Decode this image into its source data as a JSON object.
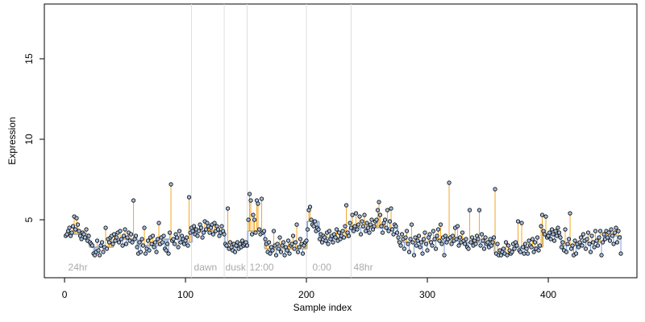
{
  "chart_data": {
    "type": "step-scatter",
    "xlabel": "Sample index",
    "ylabel": "Expression",
    "xlim": [
      -16.7,
      473.3
    ],
    "ylim": [
      1.4,
      18.4
    ],
    "xticks": [
      0,
      100,
      200,
      300,
      400
    ],
    "yticks": [
      5,
      10,
      15
    ],
    "point_color": "#a6bfe0",
    "above_color": "#f5a623",
    "below_color": "#7f9fd6",
    "fit_color": "#a6bfe0",
    "vlines": [
      105,
      132,
      151,
      200,
      237
    ],
    "annotations": [
      {
        "x": 3,
        "label": "24hr"
      },
      {
        "x": 107,
        "label": "dawn"
      },
      {
        "x": 133,
        "label": "dusk"
      },
      {
        "x": 153,
        "label": "12:00"
      },
      {
        "x": 205,
        "label": "0:00"
      },
      {
        "x": 239,
        "label": "48hr"
      }
    ],
    "fit": [
      {
        "start": 1,
        "end": 20,
        "value": 4.1
      },
      {
        "start": 21,
        "end": 40,
        "value": 3.3
      },
      {
        "start": 41,
        "end": 60,
        "value": 3.8
      },
      {
        "start": 61,
        "end": 80,
        "value": 3.4
      },
      {
        "start": 81,
        "end": 100,
        "value": 3.8
      },
      {
        "start": 101,
        "end": 105,
        "value": 3.6
      },
      {
        "start": 106,
        "end": 132,
        "value": 4.3
      },
      {
        "start": 133,
        "end": 151,
        "value": 3.3
      },
      {
        "start": 152,
        "end": 165,
        "value": 4.3
      },
      {
        "start": 166,
        "end": 200,
        "value": 3.2
      },
      {
        "start": 201,
        "end": 210,
        "value": 4.9
      },
      {
        "start": 211,
        "end": 235,
        "value": 3.9
      },
      {
        "start": 236,
        "end": 260,
        "value": 4.5
      },
      {
        "start": 261,
        "end": 275,
        "value": 4.5
      },
      {
        "start": 276,
        "end": 300,
        "value": 3.6
      },
      {
        "start": 301,
        "end": 330,
        "value": 3.7
      },
      {
        "start": 331,
        "end": 355,
        "value": 3.6
      },
      {
        "start": 356,
        "end": 370,
        "value": 2.9
      },
      {
        "start": 371,
        "end": 395,
        "value": 3.3
      },
      {
        "start": 396,
        "end": 410,
        "value": 4.1
      },
      {
        "start": 411,
        "end": 425,
        "value": 3.4
      },
      {
        "start": 426,
        "end": 445,
        "value": 3.6
      },
      {
        "start": 446,
        "end": 460,
        "value": 4.0
      }
    ],
    "x": [
      1,
      2,
      3,
      4,
      5,
      6,
      7,
      8,
      9,
      10,
      11,
      12,
      13,
      14,
      15,
      16,
      17,
      18,
      19,
      20,
      21,
      22,
      23,
      24,
      25,
      26,
      27,
      28,
      29,
      30,
      31,
      32,
      33,
      34,
      35,
      36,
      37,
      38,
      39,
      40,
      41,
      42,
      43,
      44,
      45,
      46,
      47,
      48,
      49,
      50,
      51,
      52,
      53,
      54,
      55,
      56,
      57,
      58,
      59,
      60,
      61,
      62,
      63,
      64,
      65,
      66,
      67,
      68,
      69,
      70,
      71,
      72,
      73,
      74,
      75,
      76,
      77,
      78,
      79,
      80,
      81,
      82,
      83,
      84,
      85,
      86,
      87,
      88,
      89,
      90,
      91,
      92,
      93,
      94,
      95,
      96,
      97,
      98,
      99,
      100,
      101,
      102,
      103,
      104,
      105,
      106,
      107,
      108,
      109,
      110,
      111,
      112,
      113,
      114,
      115,
      116,
      117,
      118,
      119,
      120,
      121,
      122,
      123,
      124,
      125,
      126,
      127,
      128,
      129,
      130,
      131,
      132,
      133,
      134,
      135,
      136,
      137,
      138,
      139,
      140,
      141,
      142,
      143,
      144,
      145,
      146,
      147,
      148,
      149,
      150,
      151,
      152,
      153,
      154,
      155,
      156,
      157,
      158,
      159,
      160,
      161,
      162,
      163,
      164,
      165,
      166,
      167,
      168,
      169,
      170,
      171,
      172,
      173,
      174,
      175,
      176,
      177,
      178,
      179,
      180,
      181,
      182,
      183,
      184,
      185,
      186,
      187,
      188,
      189,
      190,
      191,
      192,
      193,
      194,
      195,
      196,
      197,
      198,
      199,
      200,
      201,
      202,
      203,
      204,
      205,
      206,
      207,
      208,
      209,
      210,
      211,
      212,
      213,
      214,
      215,
      216,
      217,
      218,
      219,
      220,
      221,
      222,
      223,
      224,
      225,
      226,
      227,
      228,
      229,
      230,
      231,
      232,
      233,
      234,
      235,
      236,
      237,
      238,
      239,
      240,
      241,
      242,
      243,
      244,
      245,
      246,
      247,
      248,
      249,
      250,
      251,
      252,
      253,
      254,
      255,
      256,
      257,
      258,
      259,
      260,
      261,
      262,
      263,
      264,
      265,
      266,
      267,
      268,
      269,
      270,
      271,
      272,
      273,
      274,
      275,
      276,
      277,
      278,
      279,
      280,
      281,
      282,
      283,
      284,
      285,
      286,
      287,
      288,
      289,
      290,
      291,
      292,
      293,
      294,
      295,
      296,
      297,
      298,
      299,
      300,
      301,
      302,
      303,
      304,
      305,
      306,
      307,
      308,
      309,
      310,
      311,
      312,
      313,
      314,
      315,
      316,
      317,
      318,
      319,
      320,
      321,
      322,
      323,
      324,
      325,
      326,
      327,
      328,
      329,
      330,
      331,
      332,
      333,
      334,
      335,
      336,
      337,
      338,
      339,
      340,
      341,
      342,
      343,
      344,
      345,
      346,
      347,
      348,
      349,
      350,
      351,
      352,
      353,
      354,
      355,
      356,
      357,
      358,
      359,
      360,
      361,
      362,
      363,
      364,
      365,
      366,
      367,
      368,
      369,
      370,
      371,
      372,
      373,
      374,
      375,
      376,
      377,
      378,
      379,
      380,
      381,
      382,
      383,
      384,
      385,
      386,
      387,
      388,
      389,
      390,
      391,
      392,
      393,
      394,
      395,
      396,
      397,
      398,
      399,
      400,
      401,
      402,
      403,
      404,
      405,
      406,
      407,
      408,
      409,
      410,
      411,
      412,
      413,
      414,
      415,
      416,
      417,
      418,
      419,
      420,
      421,
      422,
      423,
      424,
      425,
      426,
      427,
      428,
      429,
      430,
      431,
      432,
      433,
      434,
      435,
      436,
      437,
      438,
      439,
      440,
      441,
      442,
      443,
      444,
      445,
      446,
      447,
      448,
      449,
      450,
      451,
      452,
      453,
      454,
      455,
      456,
      457,
      458,
      459,
      460
    ],
    "values": [
      4.0,
      4.1,
      4.3,
      4.5,
      4.0,
      4.2,
      4.6,
      5.2,
      4.4,
      5.1,
      4.7,
      4.3,
      4.0,
      3.8,
      4.2,
      4.1,
      3.9,
      4.4,
      3.7,
      4.0,
      3.6,
      3.5,
      3.4,
      2.9,
      2.8,
      3.0,
      3.7,
      3.1,
      2.8,
      3.4,
      3.6,
      3.0,
      3.3,
      4.5,
      3.2,
      3.8,
      3.6,
      3.9,
      4.0,
      3.5,
      4.1,
      3.7,
      3.9,
      4.2,
      3.6,
      4.3,
      3.8,
      3.4,
      4.0,
      4.4,
      3.5,
      3.9,
      4.2,
      3.7,
      4.1,
      3.6,
      6.2,
      3.8,
      4.0,
      3.3,
      2.9,
      3.6,
      3.0,
      3.8,
      3.4,
      4.5,
      2.9,
      3.2,
      3.7,
      3.1,
      3.9,
      3.5,
      4.0,
      3.3,
      3.6,
      3.0,
      3.8,
      4.8,
      3.5,
      3.9,
      3.6,
      4.0,
      3.2,
      3.1,
      3.5,
      2.9,
      4.2,
      7.2,
      3.7,
      3.8,
      3.5,
      4.1,
      3.9,
      3.3,
      4.3,
      3.6,
      4.0,
      3.8,
      3.5,
      3.7,
      3.9,
      3.4,
      6.4,
      4.2,
      4.5,
      4.3,
      4.6,
      4.1,
      4.4,
      4.0,
      4.3,
      4.7,
      4.5,
      3.9,
      4.2,
      4.9,
      4.4,
      4.8,
      4.6,
      4.2,
      4.5,
      4.7,
      4.1,
      4.8,
      4.3,
      4.6,
      4.4,
      4.0,
      4.2,
      4.6,
      4.3,
      4.1,
      3.5,
      3.4,
      5.7,
      3.2,
      3.6,
      3.3,
      3.1,
      3.5,
      3.0,
      3.4,
      3.6,
      3.2,
      3.5,
      3.3,
      3.7,
      3.4,
      3.5,
      3.6,
      3.4,
      5.0,
      6.6,
      6.2,
      4.1,
      5.3,
      5.0,
      4.2,
      6.2,
      6.0,
      4.4,
      4.1,
      6.3,
      4.2,
      4.3,
      3.8,
      3.5,
      3.0,
      3.6,
      2.9,
      3.3,
      3.1,
      4.3,
      3.4,
      2.8,
      3.5,
      3.2,
      3.9,
      3.0,
      3.4,
      3.6,
      2.8,
      3.3,
      3.1,
      3.7,
      2.9,
      3.4,
      3.5,
      4.0,
      3.2,
      3.6,
      4.7,
      3.0,
      3.3,
      3.8,
      3.5,
      2.9,
      3.4,
      3.6,
      3.7,
      4.4,
      5.6,
      5.8,
      5.0,
      4.7,
      4.6,
      4.9,
      4.3,
      4.5,
      4.4,
      3.8,
      4.1,
      3.6,
      4.0,
      3.9,
      3.7,
      4.2,
      3.5,
      4.3,
      3.8,
      4.0,
      3.6,
      4.1,
      3.9,
      4.4,
      3.7,
      4.2,
      3.8,
      4.0,
      4.3,
      3.9,
      4.6,
      5.9,
      4.2,
      4.0,
      4.8,
      4.5,
      5.3,
      4.3,
      4.6,
      5.4,
      4.4,
      4.7,
      5.2,
      4.1,
      4.9,
      4.6,
      5.3,
      4.3,
      4.8,
      4.5,
      4.2,
      4.7,
      5.0,
      4.4,
      4.6,
      4.9,
      5.0,
      5.6,
      6.1,
      5.3,
      4.6,
      4.2,
      4.8,
      5.0,
      4.5,
      5.6,
      4.3,
      4.9,
      5.7,
      4.4,
      4.1,
      4.7,
      4.6,
      4.2,
      3.9,
      3.6,
      3.4,
      4.1,
      3.8,
      3.2,
      3.9,
      4.3,
      3.5,
      3.0,
      3.8,
      4.7,
      3.6,
      2.8,
      3.9,
      3.4,
      3.7,
      4.0,
      3.3,
      3.6,
      2.9,
      3.8,
      4.2,
      3.5,
      3.1,
      3.9,
      4.1,
      3.6,
      3.4,
      4.3,
      3.8,
      3.2,
      4.0,
      4.4,
      3.7,
      4.7,
      3.5,
      3.9,
      2.8,
      4.0,
      3.6,
      3.8,
      7.3,
      3.9,
      3.5,
      4.0,
      3.7,
      4.5,
      3.8,
      4.6,
      3.4,
      3.9,
      3.6,
      4.2,
      3.7,
      3.5,
      3.8,
      3.3,
      3.2,
      5.6,
      3.6,
      3.9,
      3.4,
      3.7,
      3.5,
      4.0,
      3.8,
      5.6,
      3.4,
      4.1,
      3.7,
      3.2,
      3.9,
      3.5,
      3.6,
      3.3,
      3.8,
      3.4,
      3.6,
      3.9,
      6.9,
      2.9,
      3.5,
      2.8,
      3.1,
      2.8,
      3.0,
      3.2,
      2.9,
      3.6,
      2.8,
      3.4,
      3.1,
      2.9,
      3.0,
      3.5,
      3.2,
      3.6,
      3.4,
      4.9,
      3.1,
      3.0,
      4.8,
      3.3,
      2.9,
      3.5,
      3.2,
      2.9,
      3.7,
      3.4,
      3.3,
      3.8,
      3.0,
      3.6,
      3.2,
      3.9,
      3.1,
      3.4,
      4.6,
      5.3,
      4.3,
      4.1,
      5.2,
      3.9,
      4.0,
      4.2,
      3.8,
      4.4,
      4.1,
      3.7,
      4.3,
      4.0,
      4.5,
      4.2,
      3.9,
      3.3,
      3.6,
      3.1,
      4.4,
      3.0,
      3.5,
      3.8,
      5.4,
      3.2,
      3.4,
      2.8,
      3.7,
      2.9,
      3.5,
      3.3,
      3.6,
      3.9,
      3.4,
      4.1,
      3.7,
      3.2,
      3.8,
      4.2,
      3.5,
      3.0,
      4.0,
      3.6,
      3.3,
      4.3,
      3.7,
      3.4,
      3.9,
      4.3,
      2.8,
      3.6,
      4.1,
      3.8,
      4.3,
      3.9,
      4.2,
      3.7,
      4.4,
      4.0,
      3.5,
      4.2,
      4.5,
      3.6,
      4.3,
      3.9,
      2.9
    ]
  }
}
